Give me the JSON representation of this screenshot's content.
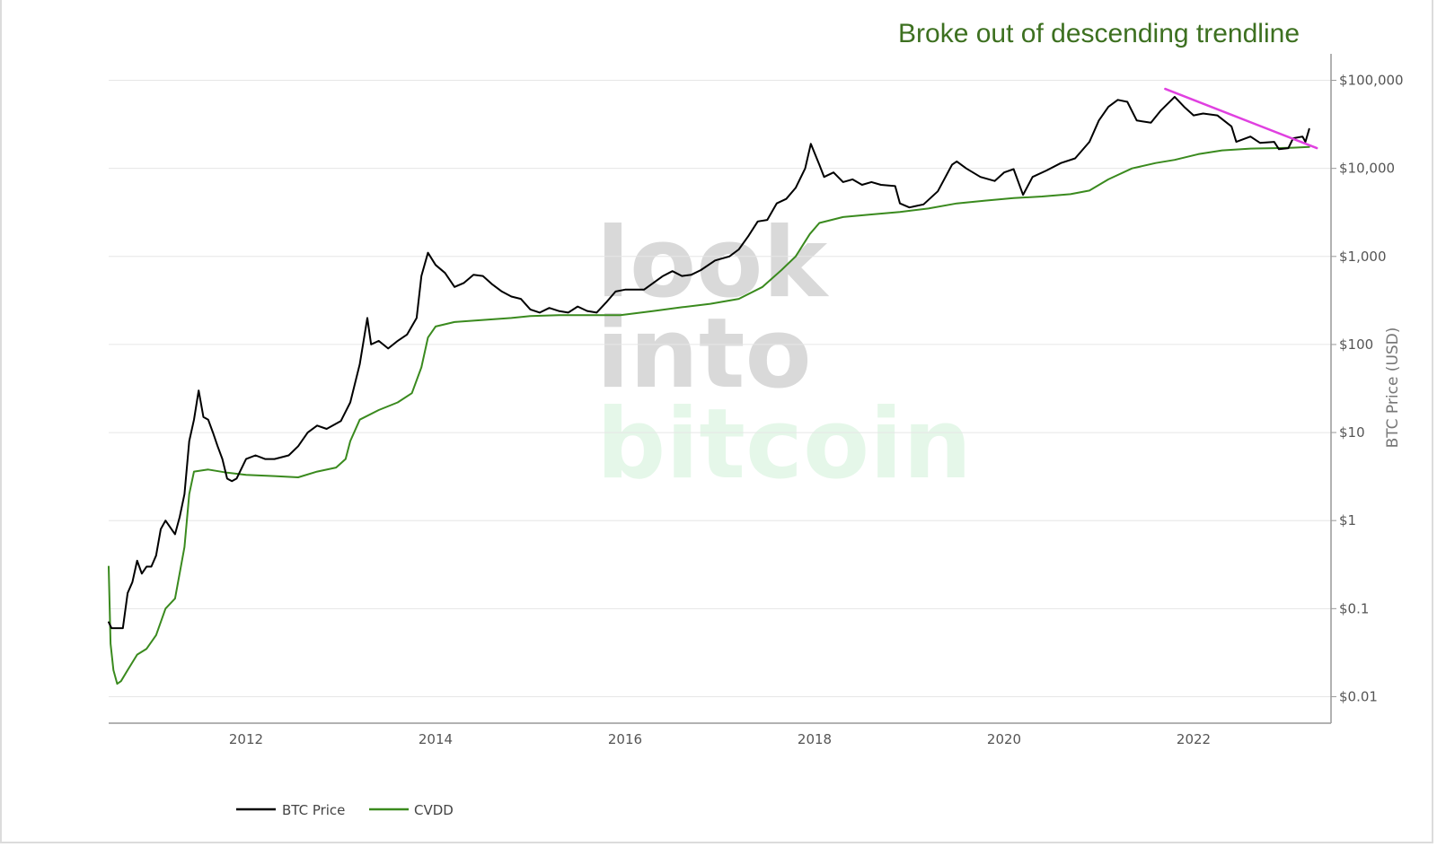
{
  "chart_data": {
    "type": "line",
    "title": "",
    "annotation": "Broke out of descending trendline",
    "ylabel": "BTC Price (USD)",
    "xlabel": "",
    "y_scale": "log",
    "ylim": [
      0.005,
      200000
    ],
    "xlim": [
      2010.55,
      2023.45
    ],
    "x_ticks": [
      2012,
      2014,
      2016,
      2018,
      2020,
      2022
    ],
    "x_tick_labels": [
      "2012",
      "2014",
      "2016",
      "2018",
      "2020",
      "2022"
    ],
    "y_ticks": [
      0.01,
      0.1,
      1,
      10,
      100,
      1000,
      10000,
      100000
    ],
    "y_tick_labels": [
      "$0.01",
      "$0.1",
      "$1",
      "$10",
      "$100",
      "$1,000",
      "$10,000",
      "$100,000"
    ],
    "grid": true,
    "legend_position": "bottom-left",
    "watermark": [
      "look",
      "into",
      "bitcoin"
    ],
    "series": [
      {
        "name": "BTC Price",
        "color": "#000000",
        "points": [
          [
            2010.55,
            0.07
          ],
          [
            2010.58,
            0.06
          ],
          [
            2010.7,
            0.06
          ],
          [
            2010.75,
            0.15
          ],
          [
            2010.8,
            0.2
          ],
          [
            2010.85,
            0.35
          ],
          [
            2010.9,
            0.25
          ],
          [
            2010.95,
            0.3
          ],
          [
            2011.0,
            0.3
          ],
          [
            2011.05,
            0.4
          ],
          [
            2011.1,
            0.8
          ],
          [
            2011.15,
            1.0
          ],
          [
            2011.25,
            0.7
          ],
          [
            2011.3,
            1.1
          ],
          [
            2011.35,
            2.0
          ],
          [
            2011.4,
            8.0
          ],
          [
            2011.45,
            14.0
          ],
          [
            2011.5,
            30.0
          ],
          [
            2011.55,
            15.0
          ],
          [
            2011.6,
            14.0
          ],
          [
            2011.65,
            10.0
          ],
          [
            2011.7,
            7.0
          ],
          [
            2011.75,
            5.0
          ],
          [
            2011.8,
            3.0
          ],
          [
            2011.85,
            2.8
          ],
          [
            2011.9,
            3.0
          ],
          [
            2012.0,
            5.0
          ],
          [
            2012.1,
            5.5
          ],
          [
            2012.2,
            5.0
          ],
          [
            2012.3,
            5.0
          ],
          [
            2012.45,
            5.5
          ],
          [
            2012.55,
            7.0
          ],
          [
            2012.65,
            10.0
          ],
          [
            2012.75,
            12.0
          ],
          [
            2012.85,
            11.0
          ],
          [
            2013.0,
            13.5
          ],
          [
            2013.1,
            22.0
          ],
          [
            2013.2,
            60.0
          ],
          [
            2013.28,
            200.0
          ],
          [
            2013.32,
            100.0
          ],
          [
            2013.4,
            110.0
          ],
          [
            2013.5,
            90.0
          ],
          [
            2013.6,
            110.0
          ],
          [
            2013.7,
            130.0
          ],
          [
            2013.8,
            200.0
          ],
          [
            2013.85,
            600.0
          ],
          [
            2013.92,
            1100.0
          ],
          [
            2014.0,
            800.0
          ],
          [
            2014.1,
            650.0
          ],
          [
            2014.2,
            450.0
          ],
          [
            2014.3,
            500.0
          ],
          [
            2014.4,
            620.0
          ],
          [
            2014.5,
            600.0
          ],
          [
            2014.6,
            480.0
          ],
          [
            2014.7,
            400.0
          ],
          [
            2014.8,
            350.0
          ],
          [
            2014.9,
            330.0
          ],
          [
            2015.0,
            250.0
          ],
          [
            2015.1,
            230.0
          ],
          [
            2015.2,
            260.0
          ],
          [
            2015.3,
            240.0
          ],
          [
            2015.4,
            230.0
          ],
          [
            2015.5,
            270.0
          ],
          [
            2015.6,
            240.0
          ],
          [
            2015.7,
            230.0
          ],
          [
            2015.8,
            300.0
          ],
          [
            2015.9,
            400.0
          ],
          [
            2016.0,
            420.0
          ],
          [
            2016.2,
            420.0
          ],
          [
            2016.4,
            600.0
          ],
          [
            2016.5,
            680.0
          ],
          [
            2016.6,
            600.0
          ],
          [
            2016.7,
            620.0
          ],
          [
            2016.8,
            700.0
          ],
          [
            2016.95,
            900.0
          ],
          [
            2017.1,
            1000.0
          ],
          [
            2017.2,
            1200.0
          ],
          [
            2017.3,
            1700.0
          ],
          [
            2017.4,
            2500.0
          ],
          [
            2017.5,
            2600.0
          ],
          [
            2017.6,
            4000.0
          ],
          [
            2017.7,
            4500.0
          ],
          [
            2017.8,
            6000.0
          ],
          [
            2017.9,
            10000.0
          ],
          [
            2017.96,
            19000.0
          ],
          [
            2018.05,
            11000.0
          ],
          [
            2018.1,
            8000.0
          ],
          [
            2018.2,
            9000.0
          ],
          [
            2018.3,
            7000.0
          ],
          [
            2018.4,
            7500.0
          ],
          [
            2018.5,
            6500.0
          ],
          [
            2018.6,
            7000.0
          ],
          [
            2018.7,
            6500.0
          ],
          [
            2018.85,
            6300.0
          ],
          [
            2018.9,
            4000.0
          ],
          [
            2019.0,
            3600.0
          ],
          [
            2019.15,
            3900.0
          ],
          [
            2019.3,
            5500.0
          ],
          [
            2019.45,
            11000.0
          ],
          [
            2019.5,
            12000.0
          ],
          [
            2019.6,
            10000.0
          ],
          [
            2019.75,
            8000.0
          ],
          [
            2019.9,
            7200.0
          ],
          [
            2020.0,
            9000.0
          ],
          [
            2020.1,
            9800.0
          ],
          [
            2020.2,
            5000.0
          ],
          [
            2020.3,
            8000.0
          ],
          [
            2020.45,
            9500.0
          ],
          [
            2020.6,
            11500.0
          ],
          [
            2020.75,
            13000.0
          ],
          [
            2020.9,
            20000.0
          ],
          [
            2021.0,
            35000.0
          ],
          [
            2021.1,
            50000.0
          ],
          [
            2021.2,
            60000.0
          ],
          [
            2021.3,
            57000.0
          ],
          [
            2021.4,
            35000.0
          ],
          [
            2021.55,
            33000.0
          ],
          [
            2021.65,
            45000.0
          ],
          [
            2021.8,
            65000.0
          ],
          [
            2021.9,
            50000.0
          ],
          [
            2022.0,
            40000.0
          ],
          [
            2022.1,
            42000.0
          ],
          [
            2022.25,
            40000.0
          ],
          [
            2022.4,
            30000.0
          ],
          [
            2022.45,
            20000.0
          ],
          [
            2022.6,
            23000.0
          ],
          [
            2022.7,
            19500.0
          ],
          [
            2022.85,
            20000.0
          ],
          [
            2022.9,
            16500.0
          ],
          [
            2023.0,
            17000.0
          ],
          [
            2023.05,
            22000.0
          ],
          [
            2023.15,
            23000.0
          ],
          [
            2023.18,
            20000.0
          ],
          [
            2023.22,
            28000.0
          ]
        ]
      },
      {
        "name": "CVDD",
        "color": "#3a8a1e",
        "points": [
          [
            2010.55,
            0.3
          ],
          [
            2010.57,
            0.04
          ],
          [
            2010.6,
            0.02
          ],
          [
            2010.64,
            0.014
          ],
          [
            2010.68,
            0.015
          ],
          [
            2010.75,
            0.02
          ],
          [
            2010.85,
            0.03
          ],
          [
            2010.95,
            0.035
          ],
          [
            2011.05,
            0.05
          ],
          [
            2011.15,
            0.1
          ],
          [
            2011.25,
            0.13
          ],
          [
            2011.35,
            0.5
          ],
          [
            2011.4,
            2.0
          ],
          [
            2011.45,
            3.6
          ],
          [
            2011.6,
            3.8
          ],
          [
            2011.8,
            3.5
          ],
          [
            2012.0,
            3.3
          ],
          [
            2012.3,
            3.2
          ],
          [
            2012.55,
            3.1
          ],
          [
            2012.75,
            3.6
          ],
          [
            2012.95,
            4.0
          ],
          [
            2013.05,
            5.0
          ],
          [
            2013.1,
            8.0
          ],
          [
            2013.2,
            14.0
          ],
          [
            2013.4,
            18.0
          ],
          [
            2013.6,
            22.0
          ],
          [
            2013.75,
            28.0
          ],
          [
            2013.85,
            55.0
          ],
          [
            2013.92,
            120.0
          ],
          [
            2014.0,
            160.0
          ],
          [
            2014.2,
            180.0
          ],
          [
            2014.5,
            190.0
          ],
          [
            2014.8,
            200.0
          ],
          [
            2015.0,
            210.0
          ],
          [
            2015.3,
            215.0
          ],
          [
            2015.6,
            215.0
          ],
          [
            2015.95,
            215.0
          ],
          [
            2016.3,
            240.0
          ],
          [
            2016.6,
            265.0
          ],
          [
            2016.9,
            290.0
          ],
          [
            2017.2,
            330.0
          ],
          [
            2017.45,
            450.0
          ],
          [
            2017.65,
            700.0
          ],
          [
            2017.8,
            1000.0
          ],
          [
            2017.95,
            1800.0
          ],
          [
            2018.05,
            2400.0
          ],
          [
            2018.3,
            2800.0
          ],
          [
            2018.6,
            3000.0
          ],
          [
            2018.9,
            3200.0
          ],
          [
            2019.2,
            3500.0
          ],
          [
            2019.5,
            4000.0
          ],
          [
            2019.8,
            4300.0
          ],
          [
            2020.1,
            4600.0
          ],
          [
            2020.4,
            4800.0
          ],
          [
            2020.7,
            5100.0
          ],
          [
            2020.9,
            5600.0
          ],
          [
            2021.1,
            7500.0
          ],
          [
            2021.35,
            10000.0
          ],
          [
            2021.6,
            11500.0
          ],
          [
            2021.8,
            12500.0
          ],
          [
            2022.05,
            14500.0
          ],
          [
            2022.3,
            16000.0
          ],
          [
            2022.6,
            16800.0
          ],
          [
            2022.85,
            17000.0
          ],
          [
            2023.05,
            17200.0
          ],
          [
            2023.22,
            17500.0
          ]
        ]
      },
      {
        "name": "",
        "color": "#e040e0",
        "points": [
          [
            2021.7,
            80000.0
          ],
          [
            2023.3,
            17000.0
          ]
        ]
      }
    ]
  }
}
